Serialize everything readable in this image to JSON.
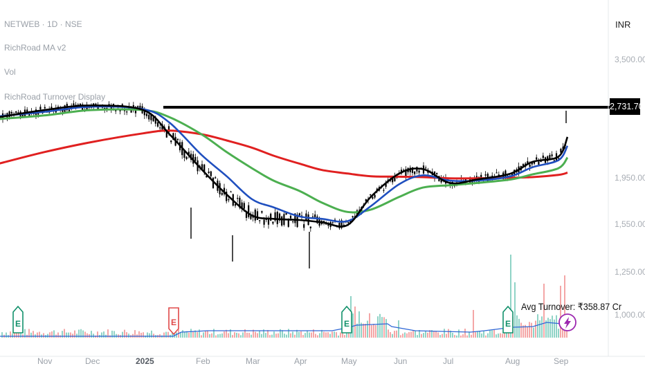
{
  "header": {
    "symbol_line": "NETWEB · 1D · NSE",
    "indicator_1": "RichRoad MA v2",
    "indicator_2": "Vol",
    "indicator_3": "RichRoad Turnover Display"
  },
  "price_axis": {
    "currency": "INR",
    "ticks": [
      "3,500.00",
      "1,950.00",
      "1,550.00",
      "1,250.00",
      "1,000.00"
    ],
    "last_price_label": "2,731.70"
  },
  "time_axis": {
    "labels": [
      "Nov",
      "Dec",
      "2025",
      "Feb",
      "Mar",
      "Apr",
      "May",
      "Jun",
      "Jul",
      "Aug",
      "Sep"
    ]
  },
  "annotations": {
    "avg_turnover": "Avg Turnover: ₹358.87 Cr",
    "earnings_marker": "E"
  },
  "colors": {
    "ma_black": "#000000",
    "ma_blue": "#1f4fbf",
    "ma_green": "#4caf50",
    "ma_red": "#e02020",
    "volume_up": "#8fd3c6",
    "volume_down": "#f4a6a6",
    "turnover_line": "#2d66d6",
    "earnings_green": "#10906a",
    "earnings_red": "#e04848",
    "lightning_purple": "#9c27b0"
  },
  "chart_data": {
    "type": "line",
    "x_axis_type": "date",
    "x_labels": [
      "Nov",
      "Dec",
      "2025",
      "Feb",
      "Mar",
      "Apr",
      "May",
      "Jun",
      "Jul",
      "Aug",
      "Sep"
    ],
    "y_ticks": [
      3500,
      1950,
      1550,
      1250,
      1000
    ],
    "last_price": 2731.7,
    "grid": false,
    "series": [
      {
        "color": "#000000",
        "x": [
          "2024-10-01",
          "2024-11-01",
          "2024-12-01",
          "2025-01-01",
          "2025-01-15",
          "2025-02-01",
          "2025-02-15",
          "2025-03-01",
          "2025-03-15",
          "2025-04-01",
          "2025-04-15",
          "2025-05-01",
          "2025-05-15",
          "2025-06-01",
          "2025-06-15",
          "2025-07-01",
          "2025-07-15",
          "2025-08-01",
          "2025-08-15",
          "2025-09-01",
          "2025-09-10"
        ],
        "values": [
          2620,
          2700,
          2760,
          2700,
          2430,
          2040,
          1800,
          1620,
          1590,
          1580,
          1560,
          1540,
          1780,
          1990,
          2040,
          1900,
          1930,
          1990,
          2120,
          2180,
          2400
        ]
      },
      {
        "color": "#1f4fbf",
        "x": [
          "2024-10-01",
          "2024-11-01",
          "2024-12-01",
          "2025-01-01",
          "2025-01-15",
          "2025-02-01",
          "2025-02-15",
          "2025-03-01",
          "2025-03-15",
          "2025-04-01",
          "2025-04-15",
          "2025-05-01",
          "2025-05-15",
          "2025-06-01",
          "2025-06-15",
          "2025-07-01",
          "2025-07-15",
          "2025-08-01",
          "2025-08-15",
          "2025-09-01",
          "2025-09-10"
        ],
        "values": [
          2630,
          2680,
          2740,
          2710,
          2560,
          2200,
          1960,
          1760,
          1690,
          1610,
          1590,
          1570,
          1700,
          1890,
          1970,
          1920,
          1920,
          1960,
          2060,
          2140,
          2300
        ]
      },
      {
        "color": "#4caf50",
        "x": [
          "2024-10-01",
          "2024-11-01",
          "2024-12-01",
          "2025-01-01",
          "2025-01-15",
          "2025-02-01",
          "2025-02-15",
          "2025-03-01",
          "2025-03-15",
          "2025-04-01",
          "2025-04-15",
          "2025-05-01",
          "2025-05-15",
          "2025-06-01",
          "2025-06-15",
          "2025-07-01",
          "2025-07-15",
          "2025-08-01",
          "2025-08-15",
          "2025-09-01",
          "2025-09-10"
        ],
        "values": [
          2600,
          2640,
          2700,
          2700,
          2620,
          2430,
          2230,
          2050,
          1920,
          1830,
          1730,
          1650,
          1670,
          1780,
          1860,
          1880,
          1900,
          1930,
          1980,
          2050,
          2170
        ]
      },
      {
        "color": "#e02020",
        "x": [
          "2024-10-01",
          "2024-11-01",
          "2024-12-01",
          "2025-01-01",
          "2025-01-15",
          "2025-02-01",
          "2025-02-15",
          "2025-03-01",
          "2025-03-15",
          "2025-04-01",
          "2025-04-15",
          "2025-05-01",
          "2025-05-15",
          "2025-06-01",
          "2025-06-15",
          "2025-07-01",
          "2025-07-15",
          "2025-08-01",
          "2025-08-15",
          "2025-09-01",
          "2025-09-10"
        ],
        "values": [
          2100,
          2230,
          2340,
          2440,
          2470,
          2430,
          2360,
          2280,
          2190,
          2100,
          2030,
          1990,
          1960,
          1955,
          1950,
          1940,
          1940,
          1945,
          1950,
          1975,
          2000
        ]
      }
    ]
  }
}
